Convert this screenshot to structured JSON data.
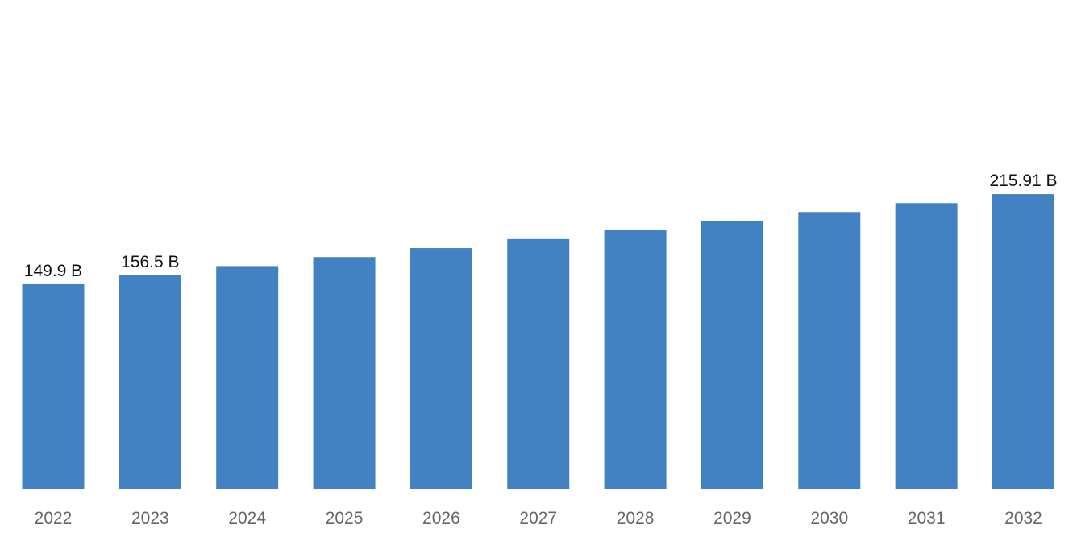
{
  "chart_data": {
    "type": "bar",
    "categories": [
      "2022",
      "2023",
      "2024",
      "2025",
      "2026",
      "2027",
      "2028",
      "2029",
      "2030",
      "2031",
      "2032"
    ],
    "values": [
      149.9,
      156.5,
      163.2,
      169.8,
      176.4,
      183.0,
      189.6,
      196.2,
      202.8,
      209.3,
      215.91
    ],
    "data_labels": [
      "149.9 B",
      "156.5 B",
      null,
      null,
      null,
      null,
      null,
      null,
      null,
      null,
      "215.91 B"
    ],
    "title": "",
    "xlabel": "",
    "ylabel": "",
    "ylim": [
      0,
      250
    ],
    "grid": false,
    "legend": "none",
    "colors": {
      "bar": "#4282c3",
      "data_label": "#111111",
      "tick_label": "#666666"
    }
  }
}
